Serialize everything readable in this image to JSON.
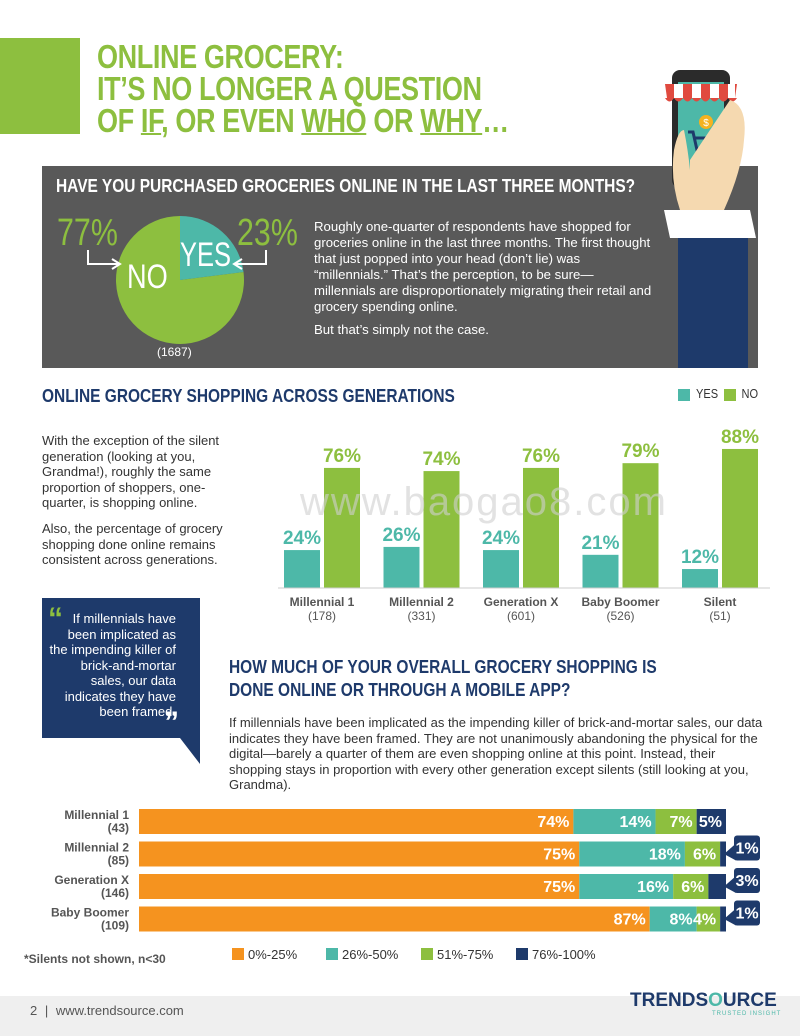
{
  "header": {
    "title_line1": "ONLINE GROCERY:",
    "title_line2": "IT’S NO LONGER A QUESTION",
    "title_line3_parts": [
      "OF ",
      "IF",
      ", OR EVEN ",
      "WHO",
      " OR ",
      "WHY",
      "…"
    ]
  },
  "colors": {
    "green": "#8dbf3f",
    "teal": "#4db8a8",
    "orange": "#f5931f",
    "navy": "#1e3a6b",
    "grey": "#595959"
  },
  "purchase_question": {
    "title": "HAVE YOU PURCHASED GROCERIES ONLINE IN THE LAST THREE MONTHS?",
    "no_pct": "77%",
    "yes_pct": "23%",
    "no_label": "NO",
    "yes_label": "YES",
    "sample": "(1687)",
    "paragraph1": "Roughly one-quarter of respondents have shopped for groceries online in the last three months. The first thought that just popped into your head (don’t lie) was “millennials.” That’s the perception, to be sure—millennials are disproportionately migrating their retail and grocery spending online.",
    "paragraph2": "But that’s simply not the case."
  },
  "generations_section": {
    "title": "ONLINE GROCERY SHOPPING ACROSS GENERATIONS",
    "legend_yes": "YES",
    "legend_no": "NO",
    "paragraph1": "With the exception of the silent generation (looking at you, Grandma!), roughly the same proportion of shoppers, one-quarter, is shopping online.",
    "paragraph2": "Also, the percentage of grocery shopping done online remains consistent across generations."
  },
  "watermark": "www.baogao8.com",
  "quote": {
    "open_mark": "“",
    "text": "If millennials have been implicated as the impending killer of brick-and-mortar sales, our data indicates they have been framed.",
    "close_mark": "”"
  },
  "share_section": {
    "title_line1": "HOW MUCH OF YOUR OVERALL GROCERY SHOPPING IS",
    "title_line2": "DONE ONLINE OR THROUGH A MOBILE APP?",
    "paragraph": "If millennials have been implicated as the impending killer of brick-and-mortar sales, our data indicates they have been framed. They are not unanimously abandoning the physical for the digital—barely a quarter of them are even shopping online at this point. Instead, their shopping stays in proportion with every other generation except silents (still looking at you, Grandma).",
    "footnote": "*Silents not shown, n<30"
  },
  "footer": {
    "page": "2",
    "separator": "|",
    "url": "www.trendsource.com",
    "brand_left": "TRENDS",
    "brand_mid": "O",
    "brand_right": "URCE",
    "tagline": "TRUSTED INSIGHT"
  },
  "chart_data": [
    {
      "type": "pie",
      "title": "HAVE YOU PURCHASED GROCERIES ONLINE IN THE LAST THREE MONTHS?",
      "categories": [
        "NO",
        "YES"
      ],
      "values": [
        77,
        23
      ],
      "labels": [
        "77%",
        "23%"
      ],
      "sample": "(1687)"
    },
    {
      "type": "bar",
      "title": "ONLINE GROCERY SHOPPING ACROSS GENERATIONS",
      "categories": [
        "Millennial 1",
        "Millennial 2",
        "Generation X",
        "Baby Boomer",
        "Silent"
      ],
      "sample_sizes": [
        "(178)",
        "(331)",
        "(601)",
        "(526)",
        "(51)"
      ],
      "series": [
        {
          "name": "YES",
          "values": [
            24,
            26,
            24,
            21,
            12
          ],
          "labels": [
            "24%",
            "26%",
            "24%",
            "21%",
            "12%"
          ]
        },
        {
          "name": "NO",
          "values": [
            76,
            74,
            76,
            79,
            88
          ],
          "labels": [
            "76%",
            "74%",
            "76%",
            "79%",
            "88%"
          ]
        }
      ],
      "ylim": [
        0,
        100
      ]
    },
    {
      "type": "bar",
      "orientation": "horizontal-stacked",
      "title": "HOW MUCH OF YOUR OVERALL GROCERY SHOPPING IS DONE ONLINE OR THROUGH A MOBILE APP?",
      "categories": [
        "Millennial 1",
        "Millennial 2",
        "Generation X",
        "Baby Boomer"
      ],
      "sample_sizes": [
        "(43)",
        "(85)",
        "(146)",
        "(109)"
      ],
      "series": [
        {
          "name": "0%-25%",
          "values": [
            74,
            75,
            75,
            87
          ],
          "labels": [
            "74%",
            "75%",
            "75%",
            "87%"
          ]
        },
        {
          "name": "26%-50%",
          "values": [
            14,
            18,
            16,
            8
          ],
          "labels": [
            "14%",
            "18%",
            "16%",
            "8%"
          ]
        },
        {
          "name": "51%-75%",
          "values": [
            7,
            6,
            6,
            4
          ],
          "labels": [
            "7%",
            "6%",
            "6%",
            "4%"
          ]
        },
        {
          "name": "76%-100%",
          "values": [
            5,
            1,
            3,
            1
          ],
          "labels": [
            "5%",
            "1%",
            "3%",
            "1%"
          ]
        }
      ]
    }
  ]
}
